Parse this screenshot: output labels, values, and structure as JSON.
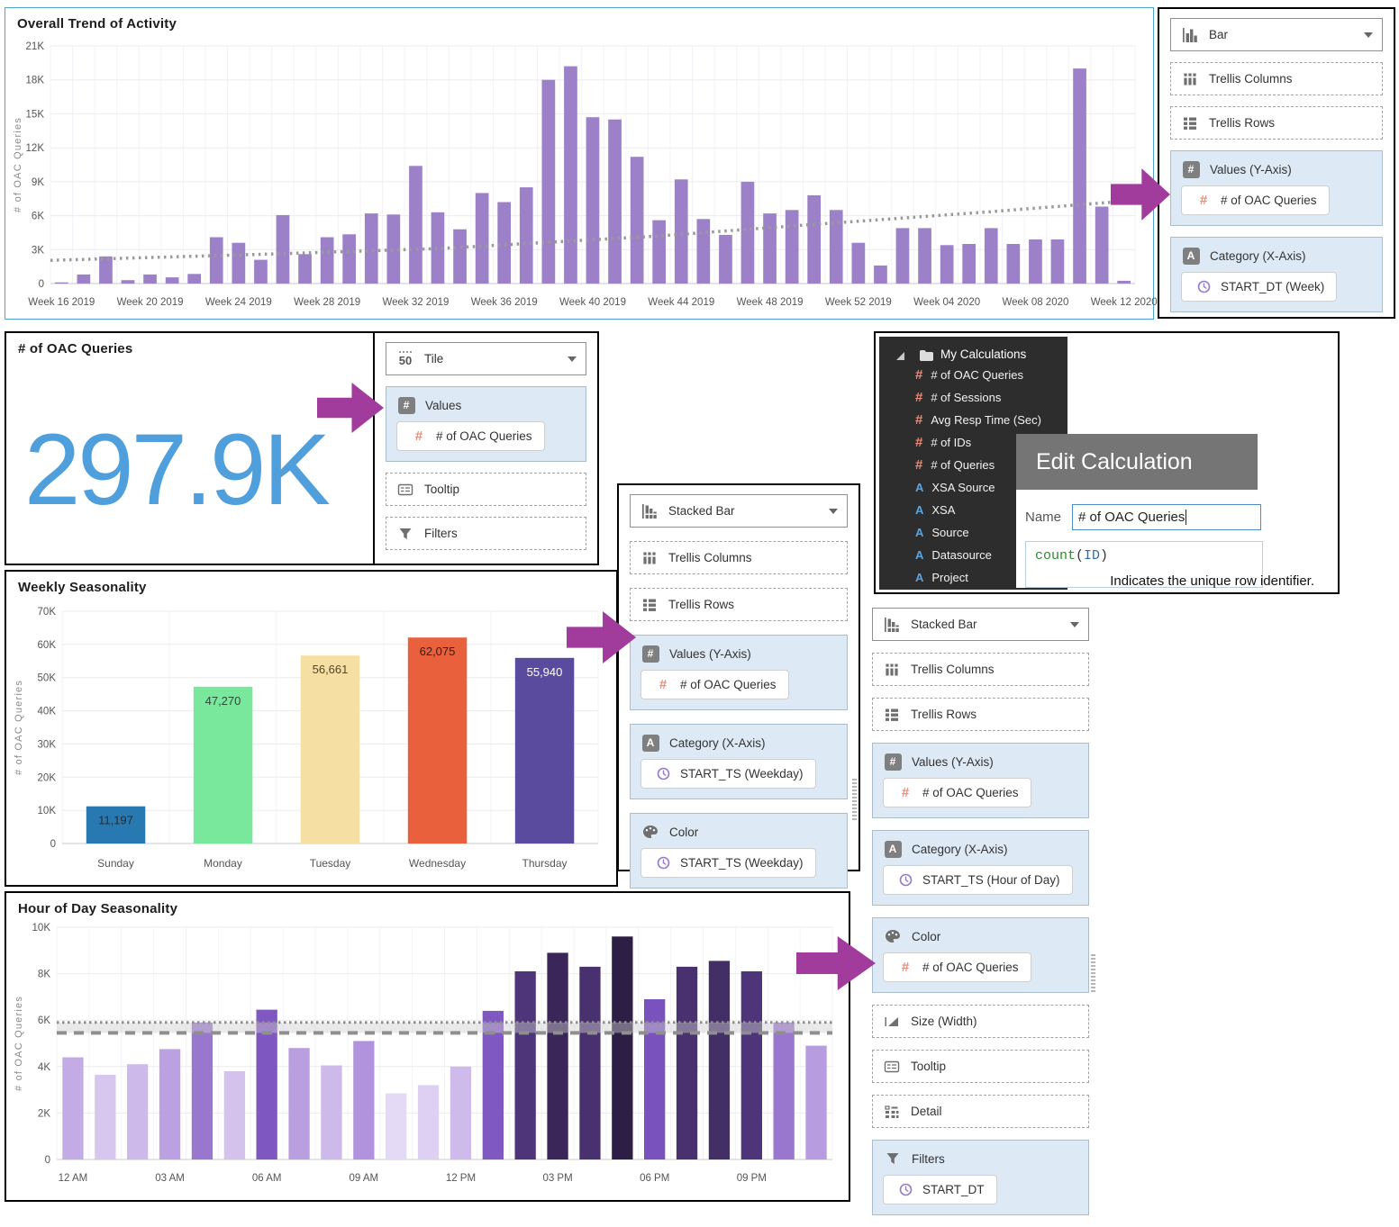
{
  "colors": {
    "arrow": "#a23c9c",
    "trend_bar": "#9c81c9",
    "tile_value": "#4f9fdc",
    "zone_background": "#dde9f4",
    "measure_icon": "#ef8b74",
    "attribute_icon": "#58a6e8",
    "clock_icon": "#9579cf",
    "dark_panel_background": "#2d2d2d",
    "dialog_header_background": "#757575"
  },
  "chart_data": [
    {
      "id": "trend",
      "type": "bar",
      "title": "Overall Trend of Activity",
      "ylabel": "# of OAC Queries",
      "ylim": [
        0,
        21000
      ],
      "yticks": [
        {
          "v": 0,
          "t": "0"
        },
        {
          "v": 3000,
          "t": "3K"
        },
        {
          "v": 6000,
          "t": "6K"
        },
        {
          "v": 9000,
          "t": "9K"
        },
        {
          "v": 12000,
          "t": "12K"
        },
        {
          "v": 15000,
          "t": "15K"
        },
        {
          "v": 18000,
          "t": "18K"
        },
        {
          "v": 21000,
          "t": "21K"
        }
      ],
      "values": [
        100,
        800,
        2400,
        300,
        800,
        550,
        850,
        4100,
        3600,
        2100,
        6050,
        2600,
        4100,
        4350,
        6200,
        6100,
        10400,
        6300,
        4800,
        8000,
        7200,
        8500,
        18000,
        19200,
        14700,
        14500,
        11200,
        5600,
        9200,
        5700,
        4300,
        9000,
        6200,
        6500,
        7800,
        6500,
        3600,
        1600,
        4900,
        4900,
        3400,
        3500,
        4900,
        3500,
        3900,
        3900,
        19000,
        6800,
        250
      ],
      "bar_color": "#9c81c9",
      "grid_vertical": true,
      "tick_labels": [
        "Week 16 2019",
        "Week 20 2019",
        "Week 24 2019",
        "Week 28 2019",
        "Week 32 2019",
        "Week 36 2019",
        "Week 40 2019",
        "Week 44 2019",
        "Week 48 2019",
        "Week 52 2019",
        "Week 04 2020",
        "Week 08 2020",
        "Week 12 2020"
      ],
      "tick_every": 4,
      "trendline": {
        "style": "dotted",
        "points": [
          [
            0,
            2050
          ],
          [
            0.2,
            2600
          ],
          [
            0.36,
            3100
          ],
          [
            0.56,
            4200
          ],
          [
            0.7,
            5200
          ],
          [
            0.86,
            6300
          ],
          [
            1,
            7350
          ]
        ]
      }
    },
    {
      "id": "weekly",
      "type": "bar",
      "title": "Weekly Seasonality",
      "ylabel": "# of OAC Queries",
      "ylim": [
        0,
        70000
      ],
      "yticks": [
        {
          "v": 0,
          "t": "0"
        },
        {
          "v": 10000,
          "t": "10K"
        },
        {
          "v": 20000,
          "t": "20K"
        },
        {
          "v": 30000,
          "t": "30K"
        },
        {
          "v": 40000,
          "t": "40K"
        },
        {
          "v": 50000,
          "t": "50K"
        },
        {
          "v": 60000,
          "t": "60K"
        },
        {
          "v": 70000,
          "t": "70K"
        }
      ],
      "categories": [
        "Sunday",
        "Monday",
        "Tuesday",
        "Wednesday",
        "Thursday"
      ],
      "values": [
        11197,
        47270,
        56661,
        62075,
        55940
      ],
      "bar_colors": [
        "#2878b2",
        "#79e89d",
        "#f5dfa2",
        "#e8613c",
        "#5b4b9e"
      ],
      "data_labels": [
        "11,197",
        "47,270",
        "56,661",
        "62,075",
        "55,940"
      ],
      "data_label_colors": [
        "#2c2c2c",
        "#2c4a38",
        "#55452a",
        "#331c13",
        "#ffffff"
      ],
      "grid_vertical": true
    },
    {
      "id": "hour",
      "type": "bar",
      "title": "Hour of Day Seasonality",
      "ylabel": "# of OAC Queries",
      "ylim": [
        0,
        10000
      ],
      "yticks": [
        {
          "v": 0,
          "t": "0"
        },
        {
          "v": 2000,
          "t": "2K"
        },
        {
          "v": 4000,
          "t": "4K"
        },
        {
          "v": 6000,
          "t": "6K"
        },
        {
          "v": 8000,
          "t": "8K"
        },
        {
          "v": 10000,
          "t": "10K"
        }
      ],
      "categories": [
        "12 AM",
        "01 AM",
        "02 AM",
        "03 AM",
        "04 AM",
        "05 AM",
        "06 AM",
        "07 AM",
        "08 AM",
        "09 AM",
        "10 AM",
        "11 AM",
        "12 PM",
        "01 PM",
        "02 PM",
        "03 PM",
        "04 PM",
        "05 PM",
        "06 PM",
        "07 PM",
        "08 PM",
        "09 PM",
        "10 PM",
        "11 PM"
      ],
      "values": [
        4400,
        3650,
        4100,
        4750,
        5900,
        3800,
        6450,
        4800,
        4050,
        5100,
        2850,
        3200,
        4000,
        6400,
        8100,
        8900,
        8300,
        9600,
        6900,
        8300,
        8550,
        8100,
        5900,
        4900
      ],
      "bar_colors": [
        "#c3abe5",
        "#d7c6ee",
        "#cdb9ea",
        "#bba1e1",
        "#9a77cf",
        "#d4c2ed",
        "#7f57c1",
        "#b99fe0",
        "#cebaea",
        "#b093dc",
        "#e4daf5",
        "#ded0f2",
        "#cfbbeb",
        "#8058c2",
        "#4e3579",
        "#3a2658",
        "#493170",
        "#2c1e44",
        "#7a52bd",
        "#493170",
        "#432e66",
        "#4e3579",
        "#9a77cf",
        "#b79cdf"
      ],
      "tick_labels": [
        "12 AM",
        "03 AM",
        "06 AM",
        "09 AM",
        "12 PM",
        "03 PM",
        "06 PM",
        "09 PM"
      ],
      "tick_every": 3,
      "ref_band": [
        5450,
        5900
      ],
      "ref_lines": [
        {
          "value": 5900,
          "style": "dotted"
        },
        {
          "value": 5450,
          "style": "dashed"
        }
      ],
      "grid_vertical": true
    }
  ],
  "tile": {
    "title": "# of OAC Queries",
    "value": "297.9K"
  },
  "config_panels": {
    "bar_panel": {
      "items": [
        {
          "kind": "select",
          "icon": "bar-chart",
          "label": "Bar"
        },
        {
          "kind": "dashed",
          "icon": "trellis-columns",
          "label": "Trellis Columns"
        },
        {
          "kind": "dashed",
          "icon": "trellis-rows",
          "label": "Trellis Rows"
        },
        {
          "kind": "zone",
          "icon": "hash-square",
          "label": "Values (Y-Axis)",
          "pills": [
            {
              "icon": "measure",
              "label": "# of OAC Queries"
            }
          ]
        },
        {
          "kind": "zone",
          "icon": "a-square",
          "label": "Category (X-Axis)",
          "pills": [
            {
              "icon": "clock",
              "label": "START_DT (Week)"
            }
          ]
        }
      ]
    },
    "tile_panel": {
      "items": [
        {
          "kind": "select",
          "icon": "tile-50",
          "label": "Tile"
        },
        {
          "kind": "zone",
          "icon": "hash-square",
          "label": "Values",
          "pills": [
            {
              "icon": "measure",
              "label": "# of OAC Queries"
            }
          ]
        },
        {
          "kind": "dashed",
          "icon": "tooltip",
          "label": "Tooltip"
        },
        {
          "kind": "dashed",
          "icon": "filter",
          "label": "Filters"
        }
      ]
    },
    "weekday_panel": {
      "items": [
        {
          "kind": "select",
          "icon": "stacked-bar",
          "label": "Stacked Bar"
        },
        {
          "kind": "dashed",
          "icon": "trellis-columns",
          "label": "Trellis Columns"
        },
        {
          "kind": "dashed",
          "icon": "trellis-rows",
          "label": "Trellis Rows"
        },
        {
          "kind": "zone",
          "icon": "hash-square",
          "label": "Values (Y-Axis)",
          "pills": [
            {
              "icon": "measure",
              "label": "# of OAC Queries"
            }
          ]
        },
        {
          "kind": "zone",
          "icon": "a-square",
          "label": "Category (X-Axis)",
          "pills": [
            {
              "icon": "clock",
              "label": "START_TS (Weekday)"
            }
          ]
        },
        {
          "kind": "zone",
          "icon": "palette",
          "label": "Color",
          "pills": [
            {
              "icon": "clock",
              "label": "START_TS (Weekday)"
            }
          ]
        }
      ]
    },
    "hour_panel": {
      "items": [
        {
          "kind": "select",
          "icon": "stacked-bar",
          "label": "Stacked Bar"
        },
        {
          "kind": "dashed",
          "icon": "trellis-columns",
          "label": "Trellis Columns"
        },
        {
          "kind": "dashed",
          "icon": "trellis-rows",
          "label": "Trellis Rows"
        },
        {
          "kind": "zone",
          "icon": "hash-square",
          "label": "Values (Y-Axis)",
          "pills": [
            {
              "icon": "measure",
              "label": "# of OAC Queries"
            }
          ]
        },
        {
          "kind": "zone",
          "icon": "a-square",
          "label": "Category (X-Axis)",
          "pills": [
            {
              "icon": "clock",
              "label": "START_TS (Hour of Day)"
            }
          ]
        },
        {
          "kind": "zone",
          "icon": "palette",
          "label": "Color",
          "pills": [
            {
              "icon": "measure",
              "label": "# of OAC Queries"
            }
          ]
        },
        {
          "kind": "dashed",
          "icon": "size",
          "label": "Size (Width)"
        },
        {
          "kind": "dashed",
          "icon": "tooltip",
          "label": "Tooltip"
        },
        {
          "kind": "dashed",
          "icon": "detail",
          "label": "Detail"
        },
        {
          "kind": "zone",
          "icon": "filter",
          "label": "Filters",
          "pills": [
            {
              "icon": "clock",
              "label": "START_DT"
            }
          ]
        }
      ]
    }
  },
  "my_calculations": {
    "folder": "My Calculations",
    "items": [
      {
        "type": "measure",
        "label": "# of OAC Queries"
      },
      {
        "type": "measure",
        "label": "# of Sessions"
      },
      {
        "type": "measure",
        "label": "Avg Resp Time (Sec)"
      },
      {
        "type": "measure",
        "label": "# of IDs"
      },
      {
        "type": "measure",
        "label": "# of Queries"
      },
      {
        "type": "attribute",
        "label": "XSA Source"
      },
      {
        "type": "attribute",
        "label": "XSA"
      },
      {
        "type": "attribute",
        "label": "Source"
      },
      {
        "type": "attribute",
        "label": "Datasource"
      },
      {
        "type": "attribute",
        "label": "Project"
      }
    ]
  },
  "edit_calculation": {
    "title": "Edit Calculation",
    "name_label": "Name",
    "name_value": "# of OAC Queries",
    "formula_function": "count",
    "formula_argument": "ID",
    "note": "Indicates the unique row identifier."
  }
}
